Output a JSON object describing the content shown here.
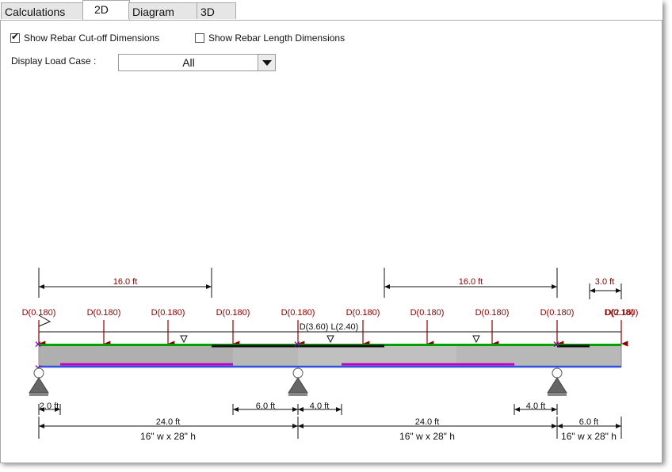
{
  "tabs": [
    {
      "label": "Calculations"
    },
    {
      "label": "2D"
    },
    {
      "label": "Diagram"
    },
    {
      "label": "3D"
    }
  ],
  "options": {
    "cutoff_label": "Show Rebar Cut-off Dimensions",
    "cutoff_checked": true,
    "length_label": "Show Rebar Length Dimensions",
    "length_checked": false,
    "load_case_label": "Display Load Case :",
    "load_case_value": "All"
  },
  "drawing": {
    "top_dims": [
      "16.0 ft",
      "16.0 ft",
      "3.0 ft"
    ],
    "point_loads": [
      "D(0.180)",
      "D(0.180)",
      "D(0.180)",
      "D(0.180)",
      "D(0.180)",
      "D(0.180)",
      "D(0.180)",
      "D(0.180)",
      "D(0.180)",
      "D(0.180)"
    ],
    "overlap_load": "D(2.16)",
    "distributed_load": "D(3.60) L(2.40)",
    "cutoff_dims": [
      "2.0 ft",
      "6.0 ft",
      "4.0 ft",
      "4.0 ft"
    ],
    "span_dims": [
      "24.0 ft",
      "24.0 ft",
      "6.0 ft"
    ],
    "sections": [
      "16\" w x 28\" h",
      "16\" w x 28\" h",
      "16\" w x 28\" h"
    ]
  },
  "colors": {
    "load_arrow": "#8b0000",
    "top_bar": "#00a000",
    "bottom_bar": "#3050e0",
    "cut_bar": "#c000c0",
    "neg_bar": "#111111",
    "concrete": "#b8b8b8"
  }
}
